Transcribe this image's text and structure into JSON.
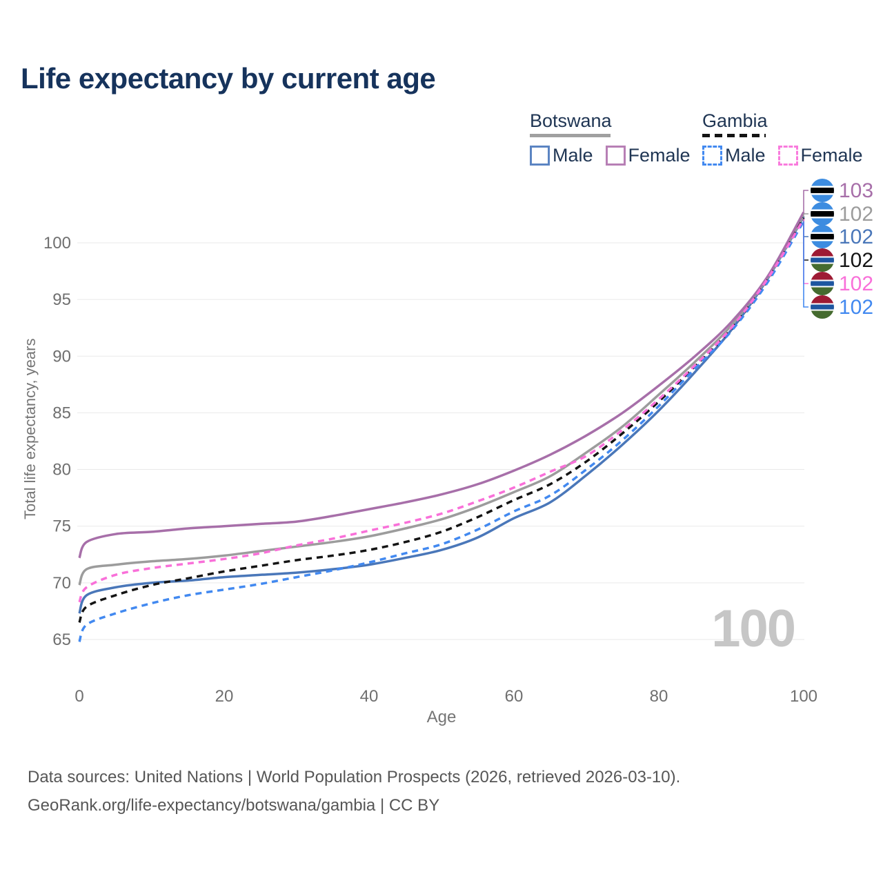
{
  "title": {
    "text": "Life expectancy by current age"
  },
  "legend": {
    "groups": [
      {
        "name": "Botswana",
        "line_style": "solid",
        "underline_color": "#a0a0a0",
        "items": [
          {
            "label": "Male",
            "color": "#4a77b9",
            "dashed": false
          },
          {
            "label": "Female",
            "color": "#a76fa9",
            "dashed": false
          }
        ]
      },
      {
        "name": "Gambia",
        "line_style": "dashed",
        "underline_color": "#141414",
        "items": [
          {
            "label": "Male",
            "color": "#4289f0",
            "dashed": true
          },
          {
            "label": "Female",
            "color": "#f970d9",
            "dashed": true
          }
        ]
      }
    ]
  },
  "chart_data": {
    "type": "line",
    "title": "Life expectancy by current age",
    "xlabel": "Age",
    "ylabel": "Total life expectancy, years",
    "xlim": [
      0,
      100
    ],
    "ylim": [
      63,
      104
    ],
    "xticks": [
      0,
      20,
      40,
      60,
      80,
      100
    ],
    "yticks": [
      65,
      70,
      75,
      80,
      85,
      90,
      95,
      100
    ],
    "grid": "horizontal",
    "x": [
      0,
      1,
      5,
      10,
      15,
      20,
      25,
      30,
      35,
      40,
      45,
      50,
      55,
      60,
      65,
      70,
      75,
      80,
      85,
      90,
      95,
      100
    ],
    "series": [
      {
        "name": "Botswana Female",
        "country": "Botswana",
        "sex": "Female",
        "color": "#a76fa9",
        "dashed": false,
        "flag": "botswana",
        "end_label": "103",
        "values": [
          72.2,
          73.6,
          74.3,
          74.5,
          74.8,
          75.0,
          75.2,
          75.4,
          75.9,
          76.5,
          77.1,
          77.8,
          78.7,
          79.9,
          81.3,
          83.0,
          85.0,
          87.4,
          90.0,
          93.0,
          97.0,
          102.7
        ]
      },
      {
        "name": "Botswana Both sexes",
        "country": "Botswana",
        "sex": "Both",
        "color": "#9c9c9c",
        "dashed": false,
        "flag": "botswana",
        "end_label": "102",
        "values": [
          69.8,
          71.2,
          71.6,
          71.9,
          72.1,
          72.4,
          72.8,
          73.2,
          73.6,
          74.1,
          74.8,
          75.6,
          76.7,
          78.0,
          79.4,
          81.5,
          83.8,
          86.6,
          89.5,
          92.7,
          96.9,
          102.4
        ]
      },
      {
        "name": "Botswana Male",
        "country": "Botswana",
        "sex": "Male",
        "color": "#4a77b9",
        "dashed": false,
        "flag": "botswana",
        "end_label": "102",
        "values": [
          67.3,
          68.9,
          69.6,
          70.0,
          70.2,
          70.5,
          70.7,
          70.9,
          71.2,
          71.6,
          72.2,
          72.9,
          74.0,
          75.7,
          77.1,
          79.5,
          82.2,
          85.2,
          88.6,
          92.3,
          96.8,
          102.3
        ]
      },
      {
        "name": "Gambia Both sexes",
        "country": "Gambia",
        "sex": "Both",
        "color": "#141414",
        "dashed": true,
        "flag": "gambia",
        "end_label": "102",
        "values": [
          66.5,
          67.9,
          68.9,
          69.8,
          70.4,
          71.0,
          71.5,
          72.0,
          72.4,
          72.9,
          73.6,
          74.5,
          75.8,
          77.3,
          78.7,
          80.7,
          83.2,
          86.0,
          89.1,
          92.4,
          96.7,
          102.2
        ]
      },
      {
        "name": "Gambia Female",
        "country": "Gambia",
        "sex": "Female",
        "color": "#f970d9",
        "dashed": true,
        "flag": "gambia",
        "end_label": "102",
        "values": [
          68.3,
          69.6,
          70.7,
          71.3,
          71.7,
          72.1,
          72.6,
          73.3,
          73.9,
          74.6,
          75.3,
          76.1,
          77.2,
          78.4,
          79.8,
          81.2,
          83.5,
          86.2,
          89.2,
          92.5,
          96.8,
          102.1
        ]
      },
      {
        "name": "Gambia Male",
        "country": "Gambia",
        "sex": "Male",
        "color": "#4289f0",
        "dashed": true,
        "flag": "gambia",
        "end_label": "102",
        "values": [
          64.8,
          66.3,
          67.3,
          68.2,
          68.9,
          69.4,
          69.9,
          70.5,
          71.1,
          71.8,
          72.6,
          73.4,
          74.7,
          76.3,
          77.7,
          80.0,
          82.6,
          85.6,
          88.9,
          92.2,
          96.5,
          101.9
        ]
      }
    ],
    "legend_position": "top-right"
  },
  "annotations": {
    "age_counter": "100"
  },
  "footer": {
    "line1": "Data sources: United Nations | World Population Prospects (2026, retrieved 2026-03-10).",
    "line2": "GeoRank.org/life-expectancy/botswana/gambia | CC BY"
  }
}
